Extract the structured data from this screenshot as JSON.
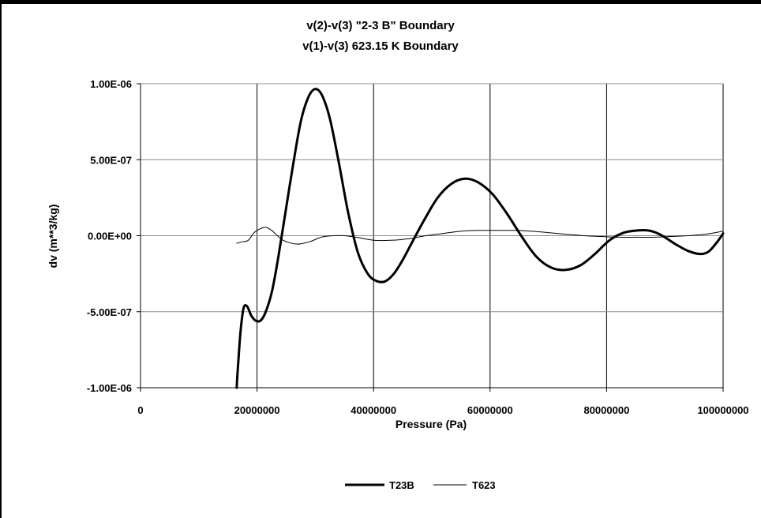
{
  "chart_data": {
    "type": "line",
    "title": "v(2)-v(3)  \"2-3 B\" Boundary",
    "subtitle": "v(1)-v(3) 623.15 K Boundary",
    "xlabel": "Pressure (Pa)",
    "ylabel": "dv (m**3/kg)",
    "xlim": [
      0,
      100000000
    ],
    "ylim": [
      -1e-06,
      1e-06
    ],
    "x_ticks": [
      0,
      20000000,
      40000000,
      60000000,
      80000000,
      100000000
    ],
    "x_tick_labels": [
      "0",
      "20000000",
      "40000000",
      "60000000",
      "80000000",
      "100000000"
    ],
    "y_ticks": [
      1e-06,
      5e-07,
      0,
      -5e-07,
      -1e-06
    ],
    "y_tick_labels": [
      "1.00E-06",
      "5.00E-07",
      "0.00E+00",
      "-5.00E-07",
      "-1.00E-06"
    ],
    "grid": "vertical and horizontal major gridlines",
    "legend_position": "bottom",
    "series": [
      {
        "name": "T23B",
        "style": "thick",
        "color": "#000000",
        "x": [
          16500000,
          16800000,
          17200000,
          17700000,
          18300000,
          19000000,
          19800000,
          20700000,
          21600000,
          22600000,
          23700000,
          24900000,
          26200000,
          27500000,
          28800000,
          30000000,
          31200000,
          32500000,
          34000000,
          35600000,
          37300000,
          39000000,
          40500000,
          42000000,
          43500000,
          45000000,
          46800000,
          48800000,
          51000000,
          53300000,
          55700000,
          58000000,
          60500000,
          63000000,
          65500000,
          68000000,
          70500000,
          73000000,
          75500000,
          78000000,
          80500000,
          83000000,
          85500000,
          87000000,
          88500000,
          90000000,
          92000000,
          94000000,
          96000000,
          97500000,
          99000000,
          100000000
        ],
        "values": [
          -1e-06,
          -8.2e-07,
          -6.2e-07,
          -4.75e-07,
          -4.65e-07,
          -5.25e-07,
          -5.6e-07,
          -5.55e-07,
          -4.9e-07,
          -3.6e-07,
          -1.3e-07,
          1.6e-07,
          4.7e-07,
          7.5e-07,
          9.1e-07,
          9.65e-07,
          9.2e-07,
          7.7e-07,
          4.9e-07,
          1.6e-07,
          -1.1e-07,
          -2.5e-07,
          -2.98e-07,
          -3e-07,
          -2.5e-07,
          -1.6e-07,
          -3e-08,
          1.1e-07,
          2.5e-07,
          3.4e-07,
          3.75e-07,
          3.5e-07,
          2.7e-07,
          1.4e-07,
          -1e-08,
          -1.4e-07,
          -2.1e-07,
          -2.25e-07,
          -1.95e-07,
          -1.2e-07,
          -3e-08,
          2e-08,
          3.5e-08,
          3.5e-08,
          2e-08,
          -1e-08,
          -6e-08,
          -1e-07,
          -1.2e-07,
          -1.05e-07,
          -4e-08,
          1.5e-08
        ]
      },
      {
        "name": "T623",
        "style": "thin",
        "color": "#000000",
        "x": [
          16500000,
          17500000,
          18500000,
          19500000,
          20500000,
          21500000,
          22500000,
          23500000,
          24500000,
          25500000,
          27000000,
          29000000,
          31000000,
          33000000,
          35000000,
          37000000,
          40000000,
          43000000,
          46000000,
          49000000,
          52000000,
          55000000,
          58000000,
          61000000,
          64000000,
          67000000,
          70000000,
          73000000,
          76000000,
          79000000,
          82000000,
          85000000,
          88000000,
          91000000,
          94000000,
          97000000,
          100000000
        ],
        "values": [
          -5e-08,
          -4e-08,
          -3e-08,
          2e-08,
          4.5e-08,
          5.5e-08,
          3.5e-08,
          0.0,
          -3e-08,
          -4.5e-08,
          -5.5e-08,
          -4e-08,
          -1e-08,
          0.0,
          0.0,
          -1e-08,
          -3e-08,
          -3e-08,
          -2e-08,
          0.0,
          1.5e-08,
          3e-08,
          3.5e-08,
          3.5e-08,
          3.5e-08,
          3e-08,
          2e-08,
          1e-08,
          0.0,
          -5e-09,
          -1e-08,
          -1e-08,
          -1e-08,
          -5e-09,
          0.0,
          1e-08,
          3e-08
        ]
      }
    ]
  }
}
